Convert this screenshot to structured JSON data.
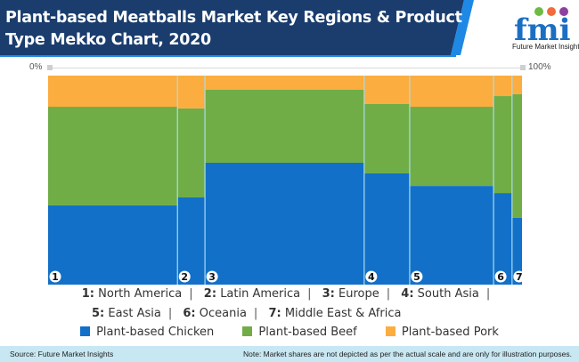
{
  "header": {
    "title": "Plant-based Meatballs Market Key Regions & Product Type Mekko Chart, 2020",
    "logo_letters": "fmi",
    "logo_text": "Future Market Insights",
    "colors": {
      "band": "#1a3d6e",
      "accent": "#1e88e5"
    }
  },
  "axis": {
    "left_label": "0%",
    "right_label": "100%"
  },
  "chart_data": {
    "type": "mekko",
    "title": "Plant-based Meatballs Market Key Regions & Product Type Mekko Chart, 2020",
    "x_axis_range": [
      "0%",
      "100%"
    ],
    "categories": [
      "1",
      "2",
      "3",
      "4",
      "5",
      "6",
      "7"
    ],
    "category_names": [
      "North America",
      "Latin America",
      "Europe",
      "South Asia",
      "East Asia",
      "Oceania",
      "Middle East & Africa"
    ],
    "widths_percent": [
      27.3,
      5.8,
      33.6,
      9.6,
      17.7,
      3.9,
      2.1
    ],
    "series": [
      {
        "name": "Plant-based Chicken",
        "color": "#1270c8",
        "values": [
          37.9,
          41.7,
          58.3,
          53.2,
          47.2,
          43.8,
          31.9
        ]
      },
      {
        "name": "Plant-based Beef",
        "color": "#70ad47",
        "values": [
          47.2,
          42.6,
          34.9,
          33.2,
          37.9,
          46.4,
          59.1
        ]
      },
      {
        "name": "Plant-based Pork",
        "color": "#fbad3f",
        "values": [
          14.9,
          15.7,
          6.8,
          13.6,
          14.9,
          9.8,
          8.9
        ]
      }
    ],
    "grid": false,
    "legend_position": "bottom"
  },
  "region_legend": [
    {
      "num": "1:",
      "name": "North America"
    },
    {
      "num": "2:",
      "name": "Latin America"
    },
    {
      "num": "3:",
      "name": "Europe"
    },
    {
      "num": "4:",
      "name": "South Asia"
    },
    {
      "num": "5:",
      "name": "East Asia"
    },
    {
      "num": "6:",
      "name": "Oceania"
    },
    {
      "num": "7:",
      "name": "Middle East & Africa"
    }
  ],
  "separator": "|",
  "footer": {
    "source": "Source: Future Market Insights",
    "note": "Note: Market shares are not depicted as per the actual scale and are only for illustration purposes."
  }
}
